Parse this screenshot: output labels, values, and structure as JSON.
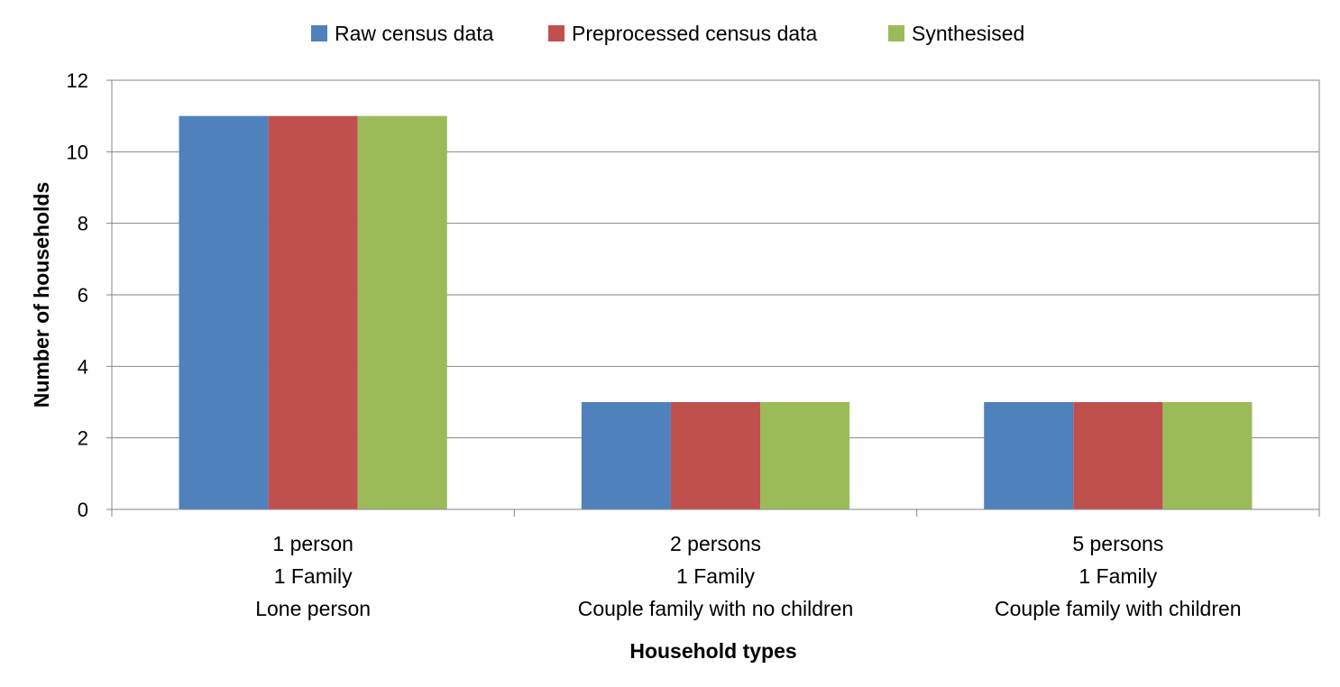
{
  "chart_data": {
    "type": "bar",
    "categories": [
      [
        "1 person",
        "1 Family",
        "Lone person"
      ],
      [
        "2 persons",
        "1 Family",
        "Couple family with no children"
      ],
      [
        "5 persons",
        "1 Family",
        "Couple family with children"
      ]
    ],
    "series": [
      {
        "name": "Raw census data",
        "color": "#4F81BD",
        "values": [
          11,
          3,
          3
        ]
      },
      {
        "name": "Preprocessed census data",
        "color": "#C0504D",
        "values": [
          11,
          3,
          3
        ]
      },
      {
        "name": "Synthesised",
        "color": "#9BBB59",
        "values": [
          11,
          3,
          3
        ]
      }
    ],
    "xlabel": "Household types",
    "ylabel": "Number of households",
    "ylim": [
      0,
      12
    ],
    "yticks": [
      0,
      2,
      4,
      6,
      8,
      10,
      12
    ],
    "grid": true,
    "legend_position": "top"
  }
}
